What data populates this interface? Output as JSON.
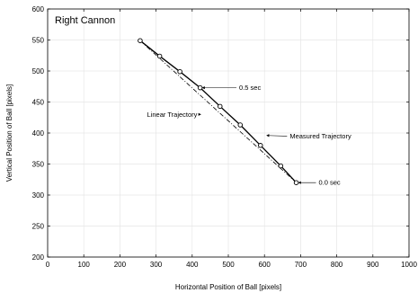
{
  "chart_data": {
    "type": "line",
    "title": "Right Cannon",
    "xlabel": "Horizontal Position of Ball   [pixels]",
    "ylabel": "Vertical Position of Ball   [pixels]",
    "xlim": [
      0,
      1000
    ],
    "ylim": [
      200,
      600
    ],
    "xticks": [
      0,
      100,
      200,
      300,
      400,
      500,
      600,
      700,
      800,
      900,
      1000
    ],
    "yticks": [
      200,
      250,
      300,
      350,
      400,
      450,
      500,
      550,
      600
    ],
    "grid": true,
    "series": [
      {
        "style": "solid-with-circle-markers",
        "x": [
          256,
          310,
          366,
          422,
          477,
          533,
          589,
          645,
          688
        ],
        "y": [
          549,
          524,
          499,
          473,
          443,
          413,
          380,
          347,
          320
        ]
      },
      {
        "style": "dash-dot",
        "x": [
          256,
          688
        ],
        "y": [
          549,
          320
        ]
      }
    ],
    "annotations": [
      {
        "text": "0.5 sec",
        "x": 530,
        "y": 473,
        "points_to": [
          422,
          473
        ]
      },
      {
        "text": "Linear Trajectory",
        "x": 275,
        "y": 430,
        "points_to": [
          430,
          430
        ]
      },
      {
        "text": "Measured Trajectory",
        "x": 670,
        "y": 395,
        "points_to": [
          600,
          396
        ]
      },
      {
        "text": "0.0 sec",
        "x": 750,
        "y": 320,
        "points_to": [
          688,
          320
        ]
      }
    ],
    "colors": {
      "line": "#000000",
      "grid": "#e6e6e6",
      "marker_fill": "#ffffff"
    }
  }
}
